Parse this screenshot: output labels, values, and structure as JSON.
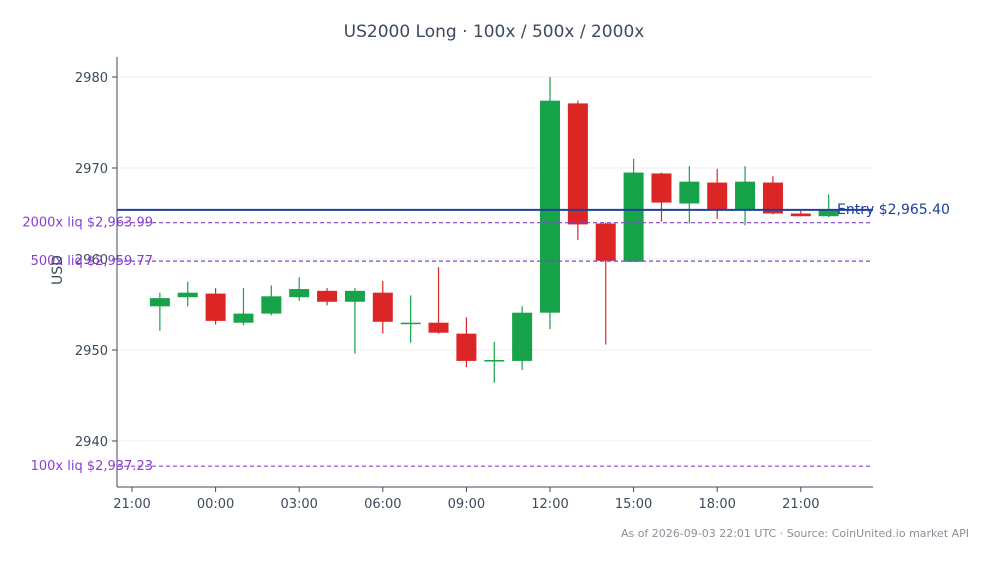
{
  "chart_data": {
    "type": "candlestick",
    "title": "US2000 Long · 100x / 500x / 2000x",
    "ylabel": "USD",
    "xlabel": "",
    "ylim": [
      2935,
      2982
    ],
    "x_tick_labels": [
      "21:00",
      "00:00",
      "03:00",
      "06:00",
      "09:00",
      "12:00",
      "15:00",
      "18:00",
      "21:00"
    ],
    "y_ticks": [
      2940,
      2950,
      2960,
      2970,
      2980
    ],
    "grid": true,
    "colors": {
      "up": "#16a34a",
      "down": "#dc2626",
      "entry": "#1f3f9c",
      "liq": "#8a3fd1"
    },
    "candles": [
      {
        "time": "22:00",
        "open": 2954.8,
        "high": 2956.3,
        "low": 2952.1,
        "close": 2955.7
      },
      {
        "time": "23:00",
        "open": 2955.8,
        "high": 2957.5,
        "low": 2954.8,
        "close": 2956.3
      },
      {
        "time": "00:00",
        "open": 2956.2,
        "high": 2956.8,
        "low": 2952.8,
        "close": 2953.2
      },
      {
        "time": "01:00",
        "open": 2953.0,
        "high": 2956.8,
        "low": 2952.7,
        "close": 2954.0
      },
      {
        "time": "02:00",
        "open": 2954.0,
        "high": 2957.1,
        "low": 2953.8,
        "close": 2955.9
      },
      {
        "time": "03:00",
        "open": 2955.8,
        "high": 2958.0,
        "low": 2955.4,
        "close": 2956.7
      },
      {
        "time": "04:00",
        "open": 2956.5,
        "high": 2956.8,
        "low": 2954.9,
        "close": 2955.3
      },
      {
        "time": "05:00",
        "open": 2955.3,
        "high": 2956.8,
        "low": 2949.6,
        "close": 2956.5
      },
      {
        "time": "06:00",
        "open": 2956.3,
        "high": 2957.6,
        "low": 2951.8,
        "close": 2953.1
      },
      {
        "time": "07:00",
        "open": 2952.9,
        "high": 2956.0,
        "low": 2950.8,
        "close": 2953.0
      },
      {
        "time": "08:00",
        "open": 2953.0,
        "high": 2959.1,
        "low": 2951.8,
        "close": 2951.9
      },
      {
        "time": "09:00",
        "open": 2951.8,
        "high": 2953.6,
        "low": 2948.1,
        "close": 2948.8
      },
      {
        "time": "10:00",
        "open": 2948.9,
        "high": 2950.9,
        "low": 2946.4,
        "close": 2948.9
      },
      {
        "time": "11:00",
        "open": 2948.8,
        "high": 2954.8,
        "low": 2947.8,
        "close": 2954.1
      },
      {
        "time": "12:00",
        "open": 2954.1,
        "high": 2980.0,
        "low": 2952.3,
        "close": 2977.4
      },
      {
        "time": "13:00",
        "open": 2977.1,
        "high": 2977.4,
        "low": 2962.1,
        "close": 2963.8
      },
      {
        "time": "14:00",
        "open": 2963.9,
        "high": 2964.0,
        "low": 2950.6,
        "close": 2959.8
      },
      {
        "time": "15:00",
        "open": 2959.7,
        "high": 2971.0,
        "low": 2959.7,
        "close": 2969.5
      },
      {
        "time": "16:00",
        "open": 2969.4,
        "high": 2969.5,
        "low": 2964.1,
        "close": 2966.2
      },
      {
        "time": "17:00",
        "open": 2966.1,
        "high": 2970.2,
        "low": 2963.9,
        "close": 2968.5
      },
      {
        "time": "18:00",
        "open": 2968.4,
        "high": 2969.9,
        "low": 2964.4,
        "close": 2965.4
      },
      {
        "time": "19:00",
        "open": 2965.4,
        "high": 2970.2,
        "low": 2963.7,
        "close": 2968.5
      },
      {
        "time": "20:00",
        "open": 2968.4,
        "high": 2969.1,
        "low": 2964.9,
        "close": 2965.0
      },
      {
        "time": "21:00",
        "open": 2965.0,
        "high": 2965.4,
        "low": 2964.7,
        "close": 2964.7
      },
      {
        "time": "22:00",
        "open": 2964.7,
        "high": 2967.1,
        "low": 2964.6,
        "close": 2965.4
      }
    ],
    "reference_lines": [
      {
        "name": "entry",
        "value": 2965.4,
        "label": "Entry $2,965.40",
        "style": "solid"
      },
      {
        "name": "liq-2000x",
        "value": 2963.99,
        "label": "2000x liq $2,963.99",
        "style": "dashed"
      },
      {
        "name": "liq-500x",
        "value": 2959.77,
        "label": "500x liq $2,959.77",
        "style": "dashed"
      },
      {
        "name": "liq-100x",
        "value": 2937.23,
        "label": "100x liq $2,937.23",
        "style": "dashed"
      }
    ]
  },
  "footer": "As of 2026-09-03 22:01 UTC · Source: CoinUnited.io market API"
}
